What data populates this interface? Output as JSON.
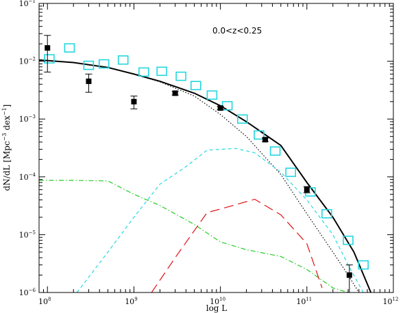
{
  "chart_data": {
    "type": "line",
    "title": "",
    "xlabel": "log L",
    "ylabel": "dN/dL [Mpc^-3 dex^-1]",
    "ylabel_parts": {
      "main": "dN/dL [Mpc",
      "exp1": "−3",
      "mid": " dex",
      "exp2": "−1",
      "end": "]"
    },
    "annotation": "0.0<z<0.25",
    "x_scale": "log",
    "y_scale": "log",
    "xlim": [
      80000000.0,
      1000000000000.0
    ],
    "ylim": [
      1e-06,
      0.1
    ],
    "grid": false,
    "legend": "none",
    "x_ticks": [
      {
        "value": 100000000.0,
        "base": "10",
        "exp": "8"
      },
      {
        "value": 1000000000.0,
        "base": "10",
        "exp": "9"
      },
      {
        "value": 10000000000.0,
        "base": "10",
        "exp": "10"
      },
      {
        "value": 100000000000.0,
        "base": "10",
        "exp": "11"
      },
      {
        "value": 1000000000000.0,
        "base": "10",
        "exp": "12"
      }
    ],
    "y_ticks": [
      {
        "value": 1e-06,
        "base": "10",
        "exp": "−6"
      },
      {
        "value": 1e-05,
        "base": "10",
        "exp": "−5"
      },
      {
        "value": 0.0001,
        "base": "10",
        "exp": "−4"
      },
      {
        "value": 0.001,
        "base": "10",
        "exp": "−3"
      },
      {
        "value": 0.01,
        "base": "10",
        "exp": "−2"
      },
      {
        "value": 0.1,
        "base": "10",
        "exp": "−1"
      }
    ],
    "series": [
      {
        "style": "solid",
        "color": "#000000",
        "x": [
          80000000.0,
          200000000.0,
          500000000.0,
          1000000000.0,
          2000000000.0,
          5000000000.0,
          10000000000.0,
          20000000000.0,
          50000000000.0,
          100000000000.0,
          200000000000.0,
          350000000000.0,
          550000000000.0
        ],
        "y": [
          0.0105,
          0.0095,
          0.0078,
          0.006,
          0.0045,
          0.0028,
          0.0017,
          0.0009,
          0.00035,
          8e-05,
          2e-05,
          5e-06,
          1e-06
        ]
      },
      {
        "style": "dotted",
        "color": "#000000",
        "x": [
          80000000.0,
          200000000.0,
          500000000.0,
          1000000000.0,
          2000000000.0,
          5000000000.0,
          10000000000.0,
          20000000000.0,
          50000000000.0,
          100000000000.0,
          200000000000.0,
          300000000000.0,
          400000000000.0
        ],
        "y": [
          0.0105,
          0.0095,
          0.0078,
          0.006,
          0.0044,
          0.0025,
          0.0012,
          0.0005,
          0.00011,
          2.3e-05,
          5e-06,
          2e-06,
          1e-06
        ]
      },
      {
        "style": "dashed",
        "color": "#26d9e0",
        "x": [
          220000000.0,
          500000000.0,
          1000000000.0,
          2000000000.0,
          4000000000.0,
          7000000000.0,
          15000000000.0,
          25000000000.0,
          50000000000.0,
          100000000000.0,
          200000000000.0,
          300000000000.0,
          450000000000.0
        ],
        "y": [
          1e-06,
          5e-06,
          2e-05,
          7.5e-05,
          0.00015,
          0.00029,
          0.00031,
          0.00026,
          0.00012,
          4e-05,
          1e-05,
          3e-06,
          1e-06
        ]
      },
      {
        "style": "dash-dot",
        "color": "#22cc22",
        "x": [
          80000000.0,
          200000000.0,
          500000000.0,
          1000000000.0,
          2000000000.0,
          5000000000.0,
          10000000000.0,
          20000000000.0,
          50000000000.0,
          100000000000.0,
          200000000000.0,
          300000000000.0
        ],
        "y": [
          8.7e-05,
          8.7e-05,
          8.5e-05,
          5e-05,
          3.2e-05,
          1.5e-05,
          7.5e-06,
          5.5e-06,
          4.2e-06,
          2.5e-06,
          1.2e-06,
          1e-06
        ]
      },
      {
        "style": "long-dash",
        "color": "#dd1111",
        "x": [
          1600000000.0,
          3000000000.0,
          7000000000.0,
          13000000000.0,
          25000000000.0,
          50000000000.0,
          100000000000.0,
          150000000000.0
        ],
        "y": [
          1e-06,
          4e-06,
          2.4e-05,
          3.1e-05,
          4.1e-05,
          2.2e-05,
          7e-06,
          1.2e-06
        ]
      }
    ],
    "points": [
      {
        "x": 100000000.0,
        "y": 0.017,
        "ylo": 0.0065,
        "yhi": 0.028
      },
      {
        "x": 300000000.0,
        "y": 0.0045,
        "ylo": 0.0029,
        "yhi": 0.006
      },
      {
        "x": 1000000000.0,
        "y": 0.002,
        "ylo": 0.0015,
        "yhi": 0.0025
      },
      {
        "x": 3000000000.0,
        "y": 0.0028,
        "ylo": 0.0026,
        "yhi": 0.003
      },
      {
        "x": 10000000000.0,
        "y": 0.00155,
        "ylo": 0.00145,
        "yhi": 0.00165
      },
      {
        "x": 33000000000.0,
        "y": 0.00044,
        "ylo": 0.00041,
        "yhi": 0.00047
      },
      {
        "x": 100000000000.0,
        "y": 6e-05,
        "ylo": 5.3e-05,
        "yhi": 6.8e-05
      },
      {
        "x": 310000000000.0,
        "y": 2e-06,
        "ylo": 1e-06,
        "yhi": 3e-06
      }
    ],
    "squares": {
      "color": "#22d6e0",
      "x": [
        105000000.0,
        180000000.0,
        300000000.0,
        450000000.0,
        750000000.0,
        1300000000.0,
        2100000000.0,
        3500000000.0,
        5200000000.0,
        8000000000.0,
        12000000000.0,
        18000000000.0,
        28000000000.0,
        43000000000.0,
        65000000000.0,
        110000000000.0,
        170000000000.0,
        300000000000.0,
        450000000000.0
      ],
      "y": [
        0.011,
        0.017,
        0.0085,
        0.009,
        0.0105,
        0.0065,
        0.0067,
        0.0055,
        0.0038,
        0.0026,
        0.0017,
        0.001,
        0.00053,
        0.00028,
        0.00012,
        5.5e-05,
        2.3e-05,
        8e-06,
        3e-06
      ]
    }
  }
}
